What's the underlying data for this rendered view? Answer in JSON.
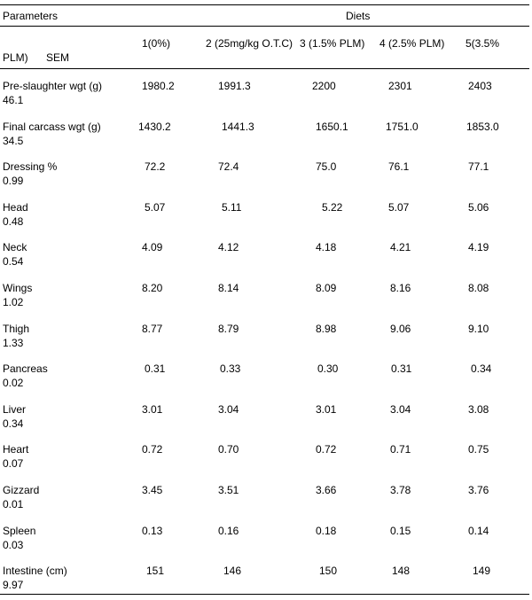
{
  "header": {
    "parameters": "Parameters",
    "diets": "Diets",
    "plm": "PLM)",
    "sem": "SEM",
    "columns": [
      "1(0%)",
      "2 (25mg/kg O.T.C)",
      "3 (1.5% PLM)",
      "4 (2.5% PLM)",
      "5(3.5%"
    ]
  },
  "rows": [
    {
      "param": "Pre-slaughter wgt (g)",
      "sem": "46.1",
      "values": [
        "1980.2",
        "1991.3",
        "2200",
        "2301",
        "2403"
      ]
    },
    {
      "param": "Final carcass wgt (g)",
      "sem": "34.5",
      "values": [
        "1430.2",
        "1441.3",
        "1650.1",
        "1751.0",
        "1853.0"
      ]
    },
    {
      "param": "Dressing %",
      "sem": "0.99",
      "values": [
        "72.2",
        "72.4",
        "75.0",
        "76.1",
        "77.1"
      ]
    },
    {
      "param": "Head",
      "sem": "0.48",
      "values": [
        "5.07",
        "5.11",
        "5.22",
        "5.07",
        "5.06"
      ]
    },
    {
      "param": "Neck",
      "sem": "0.54",
      "values": [
        "4.09",
        "4.12",
        "4.18",
        "4.21",
        "4.19"
      ]
    },
    {
      "param": "Wings",
      "sem": "1.02",
      "values": [
        "8.20",
        "8.14",
        "8.09",
        "8.16",
        "8.08"
      ]
    },
    {
      "param": "Thigh",
      "sem": "1.33",
      "values": [
        "8.77",
        "8.79",
        "8.98",
        "9.06",
        "9.10"
      ]
    },
    {
      "param": "Pancreas",
      "sem": "0.02",
      "values": [
        "0.31",
        "0.33",
        "0.30",
        "0.31",
        "0.34"
      ]
    },
    {
      "param": "Liver",
      "sem": "0.34",
      "values": [
        "3.01",
        "3.04",
        "3.01",
        "3.04",
        "3.08"
      ]
    },
    {
      "param": "Heart",
      "sem": "0.07",
      "values": [
        "0.72",
        "0.70",
        "0.72",
        "0.71",
        "0.75"
      ]
    },
    {
      "param": "Gizzard",
      "sem": "0.01",
      "values": [
        "3.45",
        "3.51",
        "3.66",
        "3.78",
        "3.76"
      ]
    },
    {
      "param": "Spleen",
      "sem": "0.03",
      "values": [
        "0.13",
        "0.16",
        "0.18",
        "0.15",
        "0.14"
      ]
    },
    {
      "param": "Intestine (cm)",
      "sem": "9.97",
      "values": [
        "151",
        "146",
        "150",
        "148",
        "149"
      ]
    }
  ]
}
